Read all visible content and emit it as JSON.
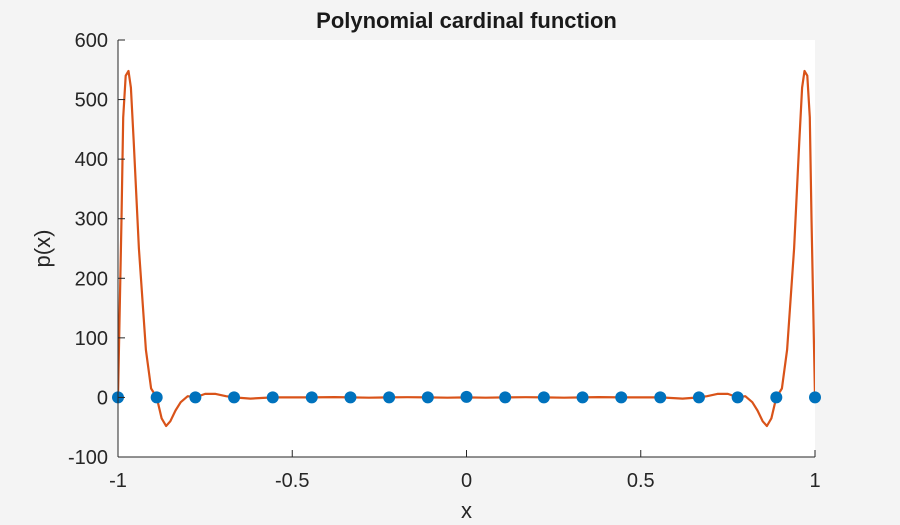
{
  "chart_data": {
    "type": "line",
    "title": "Polynomial cardinal function",
    "xlabel": "x",
    "ylabel": "p(x)",
    "xlim": [
      -1,
      1
    ],
    "ylim": [
      -100,
      600
    ],
    "xticks": [
      -1,
      -0.5,
      0,
      0.5,
      1
    ],
    "xtick_labels": [
      "-1",
      "-0.5",
      "0",
      "0.5",
      "1"
    ],
    "yticks": [
      -100,
      0,
      100,
      200,
      300,
      400,
      500,
      600
    ],
    "ytick_labels": [
      "-100",
      "0",
      "100",
      "200",
      "300",
      "400",
      "500",
      "600"
    ],
    "grid": false,
    "series": [
      {
        "kind": "line",
        "color": "#d95319",
        "x": [
          -1.0,
          -0.99,
          -0.985,
          -0.978,
          -0.97,
          -0.963,
          -0.955,
          -0.94,
          -0.92,
          -0.905,
          -0.889,
          -0.875,
          -0.862,
          -0.85,
          -0.835,
          -0.82,
          -0.8,
          -0.778,
          -0.75,
          -0.72,
          -0.69,
          -0.667,
          -0.62,
          -0.556,
          -0.5,
          -0.444,
          -0.38,
          -0.333,
          -0.28,
          -0.222,
          -0.17,
          -0.111,
          -0.055,
          0.0,
          0.055,
          0.111,
          0.17,
          0.222,
          0.28,
          0.333,
          0.38,
          0.444,
          0.5,
          0.556,
          0.62,
          0.667,
          0.69,
          0.72,
          0.75,
          0.778,
          0.8,
          0.82,
          0.835,
          0.85,
          0.862,
          0.875,
          0.889,
          0.905,
          0.92,
          0.94,
          0.955,
          0.963,
          0.97,
          0.978,
          0.985,
          0.99,
          1.0
        ],
        "y": [
          0,
          300,
          470,
          540,
          548,
          520,
          430,
          250,
          80,
          15,
          0,
          -35,
          -48,
          -40,
          -22,
          -8,
          2,
          0,
          6,
          6,
          2,
          0,
          -2,
          0,
          0,
          0,
          0.5,
          0,
          -0.5,
          0,
          0.3,
          0,
          -0.5,
          0,
          -0.5,
          0,
          0.3,
          0,
          -0.5,
          0,
          0.5,
          0,
          0,
          0,
          -2,
          0,
          2,
          6,
          6,
          0,
          2,
          -8,
          -22,
          -40,
          -48,
          -35,
          0,
          15,
          80,
          250,
          430,
          520,
          548,
          540,
          470,
          300,
          0
        ]
      },
      {
        "kind": "scatter",
        "color": "#0072bd",
        "x": [
          -1.0,
          -0.889,
          -0.778,
          -0.667,
          -0.556,
          -0.444,
          -0.333,
          -0.222,
          -0.111,
          0.0,
          0.111,
          0.222,
          0.333,
          0.444,
          0.556,
          0.667,
          0.778,
          0.889,
          1.0
        ],
        "y": [
          0,
          0,
          0,
          0,
          0,
          0,
          0,
          0,
          0,
          1,
          0,
          0,
          0,
          0,
          0,
          0,
          0,
          0,
          0
        ]
      }
    ]
  }
}
